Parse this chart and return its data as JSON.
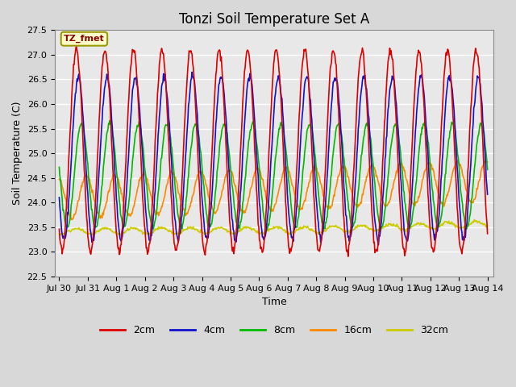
{
  "title": "Tonzi Soil Temperature Set A",
  "xlabel": "Time",
  "ylabel": "Soil Temperature (C)",
  "annotation": "TZ_fmet",
  "ylim": [
    22.5,
    27.5
  ],
  "xtick_labels": [
    "Jul 30",
    "Jul 31",
    "Aug 1",
    "Aug 2",
    "Aug 3",
    "Aug 4",
    "Aug 5",
    "Aug 6",
    "Aug 7",
    "Aug 8",
    "Aug 9",
    "Aug 10",
    "Aug 11",
    "Aug 12",
    "Aug 13",
    "Aug 14"
  ],
  "series": {
    "2cm": {
      "color": "#dd0000",
      "lw": 1.2
    },
    "4cm": {
      "color": "#1111cc",
      "lw": 1.2
    },
    "8cm": {
      "color": "#00bb00",
      "lw": 1.2
    },
    "16cm": {
      "color": "#ff8800",
      "lw": 1.2
    },
    "32cm": {
      "color": "#cccc00",
      "lw": 1.2
    }
  },
  "plot_bg": "#e8e8e8",
  "grid_color": "#ffffff",
  "title_fontsize": 12,
  "label_fontsize": 9,
  "tick_fontsize": 8
}
